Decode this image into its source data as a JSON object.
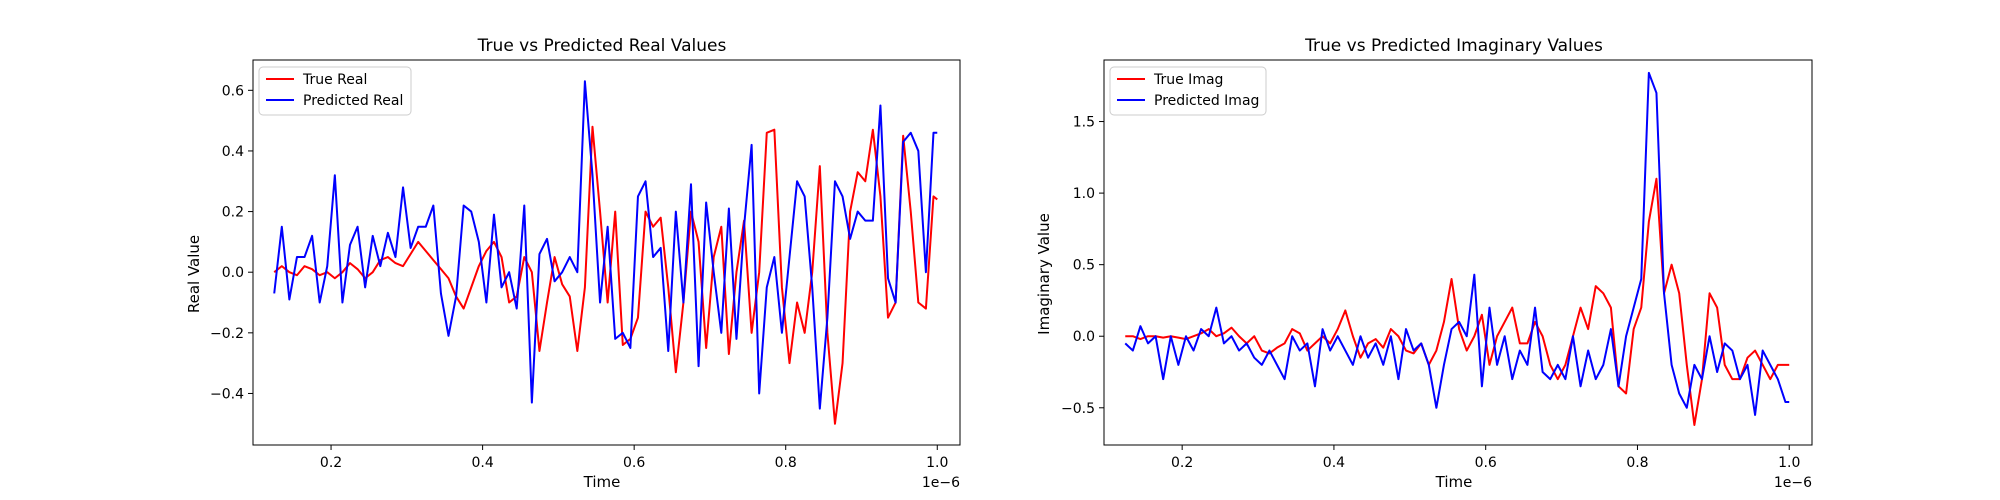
{
  "chart_data": [
    {
      "type": "line",
      "title": "True vs Predicted Real Values",
      "xlabel": "Time",
      "ylabel": "Real Value",
      "offset_label": "1e−6",
      "xlim": [
        0.097,
        1.03
      ],
      "ylim": [
        -0.57,
        0.7
      ],
      "xticks": [
        0.2,
        0.4,
        0.6,
        0.8,
        1.0
      ],
      "xtick_labels": [
        "0.2",
        "0.4",
        "0.6",
        "0.8",
        "1.0"
      ],
      "yticks": [
        -0.4,
        -0.2,
        0.0,
        0.2,
        0.4,
        0.6
      ],
      "ytick_labels": [
        "−0.4",
        "−0.2",
        "0.0",
        "0.2",
        "0.4",
        "0.6"
      ],
      "grid": false,
      "legend_position": "top-left",
      "x": [
        0.125,
        0.135,
        0.145,
        0.155,
        0.165,
        0.175,
        0.185,
        0.195,
        0.205,
        0.215,
        0.225,
        0.235,
        0.245,
        0.255,
        0.265,
        0.275,
        0.285,
        0.295,
        0.305,
        0.315,
        0.325,
        0.335,
        0.345,
        0.355,
        0.365,
        0.375,
        0.385,
        0.395,
        0.405,
        0.415,
        0.425,
        0.435,
        0.445,
        0.455,
        0.465,
        0.475,
        0.485,
        0.495,
        0.505,
        0.515,
        0.525,
        0.535,
        0.545,
        0.555,
        0.565,
        0.575,
        0.585,
        0.595,
        0.605,
        0.615,
        0.625,
        0.635,
        0.645,
        0.655,
        0.665,
        0.675,
        0.685,
        0.695,
        0.705,
        0.715,
        0.725,
        0.735,
        0.745,
        0.755,
        0.765,
        0.775,
        0.785,
        0.795,
        0.805,
        0.815,
        0.825,
        0.835,
        0.845,
        0.855,
        0.865,
        0.875,
        0.885,
        0.895,
        0.905,
        0.915,
        0.925,
        0.935,
        0.945,
        0.955,
        0.965,
        0.975,
        0.985,
        0.995,
        1.0
      ],
      "series": [
        {
          "name": "True Real",
          "color": "#ff0000",
          "values": [
            0.0,
            0.02,
            0.0,
            -0.01,
            0.02,
            0.01,
            -0.01,
            0.0,
            -0.02,
            0.0,
            0.03,
            0.01,
            -0.02,
            0.0,
            0.04,
            0.05,
            0.03,
            0.02,
            0.06,
            0.1,
            0.07,
            0.04,
            0.01,
            -0.02,
            -0.08,
            -0.12,
            -0.05,
            0.02,
            0.07,
            0.1,
            0.05,
            -0.1,
            -0.08,
            0.05,
            0.0,
            -0.26,
            -0.1,
            0.05,
            -0.04,
            -0.08,
            -0.26,
            -0.05,
            0.48,
            0.2,
            -0.1,
            0.2,
            -0.24,
            -0.22,
            -0.15,
            0.2,
            0.15,
            0.18,
            -0.05,
            -0.33,
            -0.1,
            0.2,
            0.1,
            -0.25,
            0.05,
            0.15,
            -0.27,
            0.0,
            0.17,
            -0.2,
            0.0,
            0.46,
            0.47,
            -0.05,
            -0.3,
            -0.1,
            -0.2,
            0.0,
            0.35,
            -0.2,
            -0.5,
            -0.3,
            0.2,
            0.33,
            0.3,
            0.47,
            0.25,
            -0.15,
            -0.1,
            0.45,
            0.2,
            -0.1,
            -0.12,
            0.25,
            0.24
          ]
        },
        {
          "name": "Predicted Real",
          "color": "#0000ff",
          "values": [
            -0.07,
            0.15,
            -0.09,
            0.05,
            0.05,
            0.12,
            -0.1,
            0.02,
            0.32,
            -0.1,
            0.09,
            0.15,
            -0.05,
            0.12,
            0.02,
            0.13,
            0.05,
            0.28,
            0.08,
            0.15,
            0.15,
            0.22,
            -0.07,
            -0.21,
            -0.08,
            0.22,
            0.2,
            0.1,
            -0.1,
            0.19,
            -0.05,
            0.0,
            -0.12,
            0.22,
            -0.43,
            0.06,
            0.11,
            -0.03,
            0.0,
            0.05,
            0.0,
            0.63,
            0.32,
            -0.1,
            0.15,
            -0.22,
            -0.2,
            -0.25,
            0.25,
            0.3,
            0.05,
            0.08,
            -0.26,
            0.2,
            -0.1,
            0.29,
            -0.31,
            0.23,
            0.0,
            -0.2,
            0.21,
            -0.22,
            0.15,
            0.42,
            -0.4,
            -0.05,
            0.05,
            -0.2,
            0.05,
            0.3,
            0.25,
            -0.05,
            -0.45,
            -0.15,
            0.3,
            0.25,
            0.11,
            0.2,
            0.17,
            0.17,
            0.55,
            -0.02,
            -0.1,
            0.43,
            0.46,
            0.4,
            0.0,
            0.46,
            0.46
          ]
        }
      ]
    },
    {
      "type": "line",
      "title": "True vs Predicted Imaginary Values",
      "xlabel": "Time",
      "ylabel": "Imaginary Value",
      "offset_label": "1e−6",
      "xlim": [
        0.097,
        1.03
      ],
      "ylim": [
        -0.76,
        1.93
      ],
      "xticks": [
        0.2,
        0.4,
        0.6,
        0.8,
        1.0
      ],
      "xtick_labels": [
        "0.2",
        "0.4",
        "0.6",
        "0.8",
        "1.0"
      ],
      "yticks": [
        -0.5,
        0.0,
        0.5,
        1.0,
        1.5
      ],
      "ytick_labels": [
        "−0.5",
        "0.0",
        "0.5",
        "1.0",
        "1.5"
      ],
      "grid": false,
      "legend_position": "top-left",
      "x": [
        0.125,
        0.135,
        0.145,
        0.155,
        0.165,
        0.175,
        0.185,
        0.195,
        0.205,
        0.215,
        0.225,
        0.235,
        0.245,
        0.255,
        0.265,
        0.275,
        0.285,
        0.295,
        0.305,
        0.315,
        0.325,
        0.335,
        0.345,
        0.355,
        0.365,
        0.375,
        0.385,
        0.395,
        0.405,
        0.415,
        0.425,
        0.435,
        0.445,
        0.455,
        0.465,
        0.475,
        0.485,
        0.495,
        0.505,
        0.515,
        0.525,
        0.535,
        0.545,
        0.555,
        0.565,
        0.575,
        0.585,
        0.595,
        0.605,
        0.615,
        0.625,
        0.635,
        0.645,
        0.655,
        0.665,
        0.675,
        0.685,
        0.695,
        0.705,
        0.715,
        0.725,
        0.735,
        0.745,
        0.755,
        0.765,
        0.775,
        0.785,
        0.795,
        0.805,
        0.815,
        0.825,
        0.835,
        0.845,
        0.855,
        0.865,
        0.875,
        0.885,
        0.895,
        0.905,
        0.915,
        0.925,
        0.935,
        0.945,
        0.955,
        0.965,
        0.975,
        0.985,
        0.995,
        1.0
      ],
      "series": [
        {
          "name": "True Imag",
          "color": "#ff0000",
          "values": [
            0.0,
            0.0,
            -0.02,
            0.0,
            0.0,
            -0.01,
            0.0,
            -0.01,
            -0.02,
            0.0,
            0.02,
            0.05,
            0.0,
            0.02,
            0.06,
            0.0,
            -0.05,
            0.0,
            -0.1,
            -0.12,
            -0.08,
            -0.05,
            0.05,
            0.02,
            -0.1,
            -0.05,
            0.0,
            -0.05,
            0.05,
            0.18,
            0.0,
            -0.15,
            -0.05,
            -0.02,
            -0.08,
            0.05,
            0.0,
            -0.1,
            -0.12,
            -0.05,
            -0.2,
            -0.1,
            0.1,
            0.4,
            0.05,
            -0.1,
            0.0,
            0.15,
            -0.2,
            0.0,
            0.1,
            0.2,
            -0.05,
            -0.05,
            0.1,
            0.0,
            -0.2,
            -0.3,
            -0.2,
            0.0,
            0.2,
            0.05,
            0.35,
            0.3,
            0.2,
            -0.35,
            -0.4,
            0.05,
            0.2,
            0.8,
            1.1,
            0.3,
            0.5,
            0.3,
            -0.2,
            -0.62,
            -0.3,
            0.3,
            0.2,
            -0.2,
            -0.3,
            -0.3,
            -0.15,
            -0.1,
            -0.2,
            -0.3,
            -0.2,
            -0.2,
            -0.2
          ]
        },
        {
          "name": "Predicted Imag",
          "color": "#0000ff",
          "values": [
            -0.05,
            -0.1,
            0.07,
            -0.05,
            0.0,
            -0.3,
            0.0,
            -0.2,
            0.0,
            -0.1,
            0.05,
            0.0,
            0.2,
            -0.05,
            0.0,
            -0.1,
            -0.05,
            -0.15,
            -0.2,
            -0.1,
            -0.2,
            -0.3,
            0.0,
            -0.1,
            -0.05,
            -0.35,
            0.05,
            -0.1,
            0.0,
            -0.1,
            -0.2,
            0.0,
            -0.15,
            -0.05,
            -0.2,
            0.0,
            -0.3,
            0.05,
            -0.1,
            -0.05,
            -0.2,
            -0.5,
            -0.2,
            0.05,
            0.1,
            0.0,
            0.43,
            -0.35,
            0.2,
            -0.2,
            0.0,
            -0.3,
            -0.1,
            -0.2,
            0.2,
            -0.25,
            -0.3,
            -0.2,
            -0.3,
            0.0,
            -0.35,
            -0.1,
            -0.3,
            -0.2,
            0.05,
            -0.35,
            0.0,
            0.2,
            0.4,
            1.84,
            1.7,
            0.3,
            -0.2,
            -0.4,
            -0.5,
            -0.2,
            -0.3,
            0.0,
            -0.25,
            -0.05,
            -0.1,
            -0.3,
            -0.2,
            -0.55,
            -0.1,
            -0.2,
            -0.3,
            -0.46,
            -0.46
          ]
        }
      ]
    }
  ]
}
